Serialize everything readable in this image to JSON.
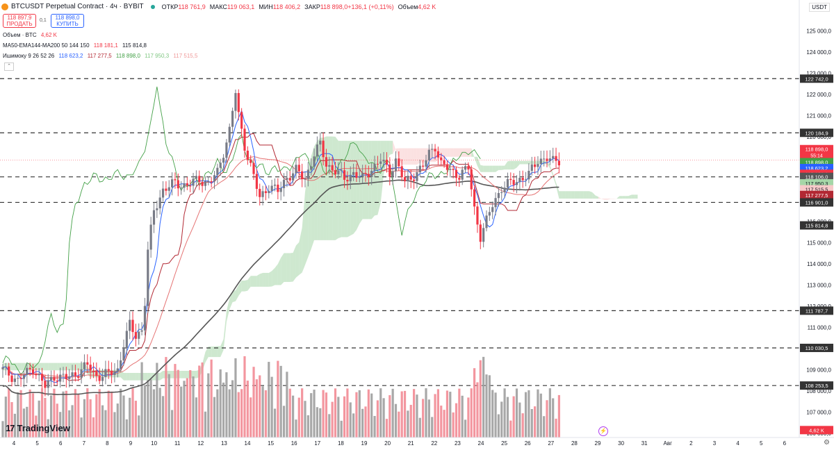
{
  "header": {
    "title": "BTCUSDT Perpetual Contract · 4ч · BYBIT",
    "ohlc": [
      {
        "k": "ОТКР",
        "v": "118 761,9"
      },
      {
        "k": "МАКС",
        "v": "119 063,1"
      },
      {
        "k": "МИН",
        "v": "118 406,2"
      },
      {
        "k": "ЗАКР",
        "v": "118 898,0"
      },
      {
        "k": "",
        "v": "+136,1 (+0,11%)"
      },
      {
        "k": "Объем",
        "v": "4,62 K"
      }
    ],
    "sell_price": "118 897,9",
    "sell_label": "ПРОДАТЬ",
    "spread": "0,1",
    "buy_price": "118 898,0",
    "buy_label": "КУПИТЬ",
    "currency": "USDT"
  },
  "legends": {
    "volume": {
      "label": "Объем · BTC",
      "value": "4,62 K"
    },
    "ma": {
      "label": "MA50-EMA144-MA200 50 144 150",
      "v1": "118 181,1",
      "v2": "115 814,8"
    },
    "ichimoku": {
      "label": "Ишимоку 9 26 52 26",
      "v1": "118 623,2",
      "v2": "117 277,5",
      "v3": "118 898,0",
      "v4": "117 950,3",
      "v5": "117 515,5"
    }
  },
  "branding": {
    "logo_text": "TradingView",
    "mark": "17"
  },
  "colors": {
    "up": "#089981",
    "down": "#f23645",
    "tenkan": "#2962ff",
    "kijun": "#b22833",
    "chikou": "#43a047",
    "ma_long": "#555555",
    "cloud_up": "#a5d6a7",
    "cloud_down": "#f7c9c9",
    "hline": "#333333"
  },
  "chart_data": {
    "type": "candlestick",
    "y_range": [
      105800,
      125800
    ],
    "y_ticks": [
      "125 000,0",
      "124 000,0",
      "123 000,0",
      "122 000,0",
      "121 000,0",
      "120 000,0",
      "119 000,0",
      "118 000,0",
      "117 000,0",
      "116 000,0",
      "115 000,0",
      "114 000,0",
      "113 000,0",
      "112 000,0",
      "111 000,0",
      "110 000,0",
      "109 000,0",
      "108 000,0",
      "107 000,0",
      "106 000,0"
    ],
    "x_ticks": [
      "4",
      "5",
      "6",
      "7",
      "8",
      "9",
      "10",
      "11",
      "12",
      "13",
      "14",
      "15",
      "16",
      "17",
      "18",
      "19",
      "20",
      "21",
      "22",
      "23",
      "24",
      "25",
      "26",
      "27",
      "28",
      "29",
      "30",
      "31",
      "Авг",
      "2",
      "3",
      "4",
      "5",
      "6"
    ],
    "horizontal_levels": [
      {
        "value": 122742.0,
        "label": "122 742,0"
      },
      {
        "value": 120184.9,
        "label": "120 184,9"
      },
      {
        "value": 118106.0,
        "label": "118 106,0"
      },
      {
        "value": 116901.0,
        "label": "116 901,0"
      },
      {
        "value": 111787.7,
        "label": "111 787,7"
      },
      {
        "value": 110030.5,
        "label": "110 030,5"
      },
      {
        "value": 108253.5,
        "label": "108 253,5"
      }
    ],
    "price_tags": [
      {
        "value": "118 898,0",
        "sub": "55:14",
        "color": "#f23645"
      },
      {
        "value": "118 898,0",
        "color": "#43a047"
      },
      {
        "value": "118 623,2",
        "color": "#2962ff"
      },
      {
        "value": "118 181,1",
        "color": "#f23645"
      },
      {
        "value": "118 106,0",
        "color": "#555555"
      },
      {
        "value": "117 950,3",
        "color": "#a5d6a7",
        "dark": true
      },
      {
        "value": "117 515,5",
        "color": "#f7c9c9",
        "dark": true
      },
      {
        "value": "117 277,5",
        "color": "#b22833"
      },
      {
        "value": "116 901,0",
        "color": "#333333"
      },
      {
        "value": "115 814,8",
        "color": "#333333"
      },
      {
        "value": "4,62 K",
        "color": "#f23645",
        "volume": true
      }
    ],
    "close_path": [
      [
        0,
        109000
      ],
      [
        5,
        108500
      ],
      [
        10,
        109100
      ],
      [
        14,
        108200
      ],
      [
        17,
        108700
      ],
      [
        21,
        108600
      ],
      [
        24,
        108800
      ],
      [
        28,
        109200
      ],
      [
        31,
        108700
      ],
      [
        35,
        108800
      ],
      [
        38,
        109000
      ],
      [
        40,
        110200
      ],
      [
        42,
        111100
      ],
      [
        44,
        110600
      ],
      [
        46,
        110900
      ],
      [
        47,
        112200
      ],
      [
        48,
        114600
      ],
      [
        50,
        116500
      ],
      [
        53,
        117500
      ],
      [
        57,
        117800
      ],
      [
        61,
        117700
      ],
      [
        65,
        118000
      ],
      [
        68,
        117800
      ],
      [
        71,
        118300
      ],
      [
        73,
        119300
      ],
      [
        75,
        120300
      ],
      [
        77,
        122100
      ],
      [
        78,
        121000
      ],
      [
        80,
        119600
      ],
      [
        82,
        118600
      ],
      [
        85,
        117100
      ],
      [
        88,
        117700
      ],
      [
        91,
        117400
      ],
      [
        94,
        118100
      ],
      [
        97,
        118400
      ],
      [
        100,
        118000
      ],
      [
        103,
        119200
      ],
      [
        105,
        119600
      ],
      [
        107,
        118700
      ],
      [
        110,
        118400
      ],
      [
        113,
        118000
      ],
      [
        116,
        118300
      ],
      [
        119,
        118000
      ],
      [
        122,
        118500
      ],
      [
        125,
        118900
      ],
      [
        128,
        118300
      ],
      [
        130,
        118900
      ],
      [
        133,
        117800
      ],
      [
        136,
        118200
      ],
      [
        139,
        118600
      ],
      [
        141,
        119200
      ],
      [
        143,
        119600
      ],
      [
        145,
        118700
      ],
      [
        148,
        118400
      ],
      [
        151,
        118200
      ],
      [
        154,
        118500
      ],
      [
        156,
        116600
      ],
      [
        158,
        115300
      ],
      [
        160,
        116000
      ],
      [
        162,
        116800
      ],
      [
        165,
        117600
      ],
      [
        168,
        117800
      ],
      [
        171,
        118000
      ],
      [
        174,
        118200
      ],
      [
        177,
        118900
      ],
      [
        180,
        119000
      ],
      [
        182,
        118800
      ],
      [
        184,
        118900
      ]
    ],
    "volume": {
      "max": 20,
      "pct_range": "lower pane"
    }
  }
}
